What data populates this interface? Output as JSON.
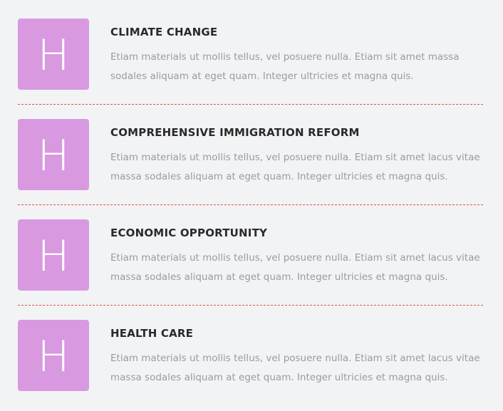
{
  "colors": {
    "icon_background": "#d899e0",
    "divider": "#d9534f",
    "title": "#2a2a2a",
    "description": "#9a9ba0",
    "page_background": "#f2f3f5"
  },
  "issues": [
    {
      "icon_letter": "H",
      "title": "CLIMATE CHANGE",
      "description": "Etiam materials ut mollis tellus, vel posuere nulla. Etiam sit amet massa sodales aliquam at eget quam. Integer ultricies et magna quis."
    },
    {
      "icon_letter": "H",
      "title": "COMPREHENSIVE IMMIGRATION REFORM",
      "description": "Etiam materials ut mollis tellus, vel posuere nulla. Etiam sit amet lacus vitae massa sodales aliquam at eget quam. Integer ultricies et magna quis."
    },
    {
      "icon_letter": "H",
      "title": "ECONOMIC OPPORTUNITY",
      "description": "Etiam materials ut mollis tellus, vel posuere nulla. Etiam sit amet lacus vitae massa sodales aliquam at eget quam. Integer ultricies et magna quis."
    },
    {
      "icon_letter": "H",
      "title": "HEALTH CARE",
      "description": "Etiam materials ut mollis tellus, vel posuere nulla. Etiam sit amet lacus vitae massa sodales aliquam at eget quam. Integer ultricies et magna quis."
    }
  ]
}
